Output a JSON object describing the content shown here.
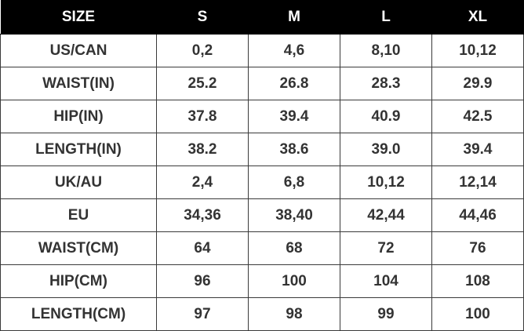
{
  "table": {
    "headers": [
      "SIZE",
      "S",
      "M",
      "L",
      "XL"
    ],
    "rows": [
      [
        "US/CAN",
        "0,2",
        "4,6",
        "8,10",
        "10,12"
      ],
      [
        "WAIST(IN)",
        "25.2",
        "26.8",
        "28.3",
        "29.9"
      ],
      [
        "HIP(IN)",
        "37.8",
        "39.4",
        "40.9",
        "42.5"
      ],
      [
        "LENGTH(IN)",
        "38.2",
        "38.6",
        "39.0",
        "39.4"
      ],
      [
        "UK/AU",
        "2,4",
        "6,8",
        "10,12",
        "12,14"
      ],
      [
        "EU",
        "34,36",
        "38,40",
        "42,44",
        "44,46"
      ],
      [
        "WAIST(CM)",
        "64",
        "68",
        "72",
        "76"
      ],
      [
        "HIP(CM)",
        "96",
        "100",
        "104",
        "108"
      ],
      [
        "LENGTH(CM)",
        "97",
        "98",
        "99",
        "100"
      ]
    ]
  },
  "colors": {
    "header_background": "#000000",
    "header_text": "#ffffff",
    "cell_text": "#333333",
    "grid_lines": "#3a3a3a"
  }
}
